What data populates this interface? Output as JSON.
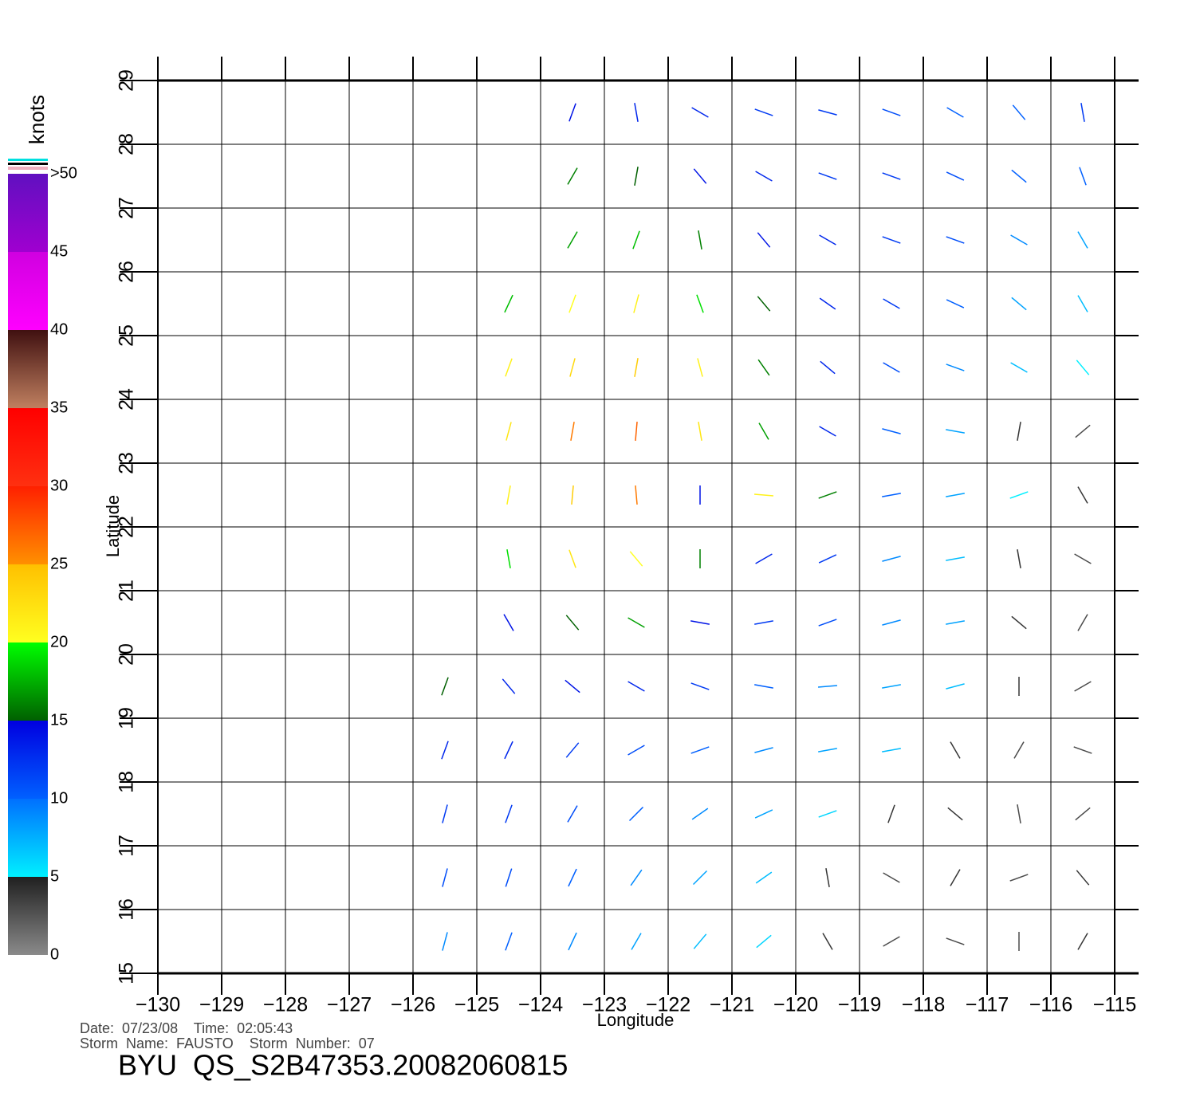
{
  "chart_data": {
    "type": "wind-vector",
    "x_label": "Longitude",
    "y_label": "Latitude",
    "xlim": [
      -130,
      -115
    ],
    "ylim": [
      15,
      29
    ],
    "xticks": [
      {
        "value": -130,
        "label": "−130"
      },
      {
        "value": -129,
        "label": "−129"
      },
      {
        "value": -128,
        "label": "−128"
      },
      {
        "value": -127,
        "label": "−127"
      },
      {
        "value": -126,
        "label": "−126"
      },
      {
        "value": -125,
        "label": "−125"
      },
      {
        "value": -124,
        "label": "−124"
      },
      {
        "value": -123,
        "label": "−123"
      },
      {
        "value": -122,
        "label": "−122"
      },
      {
        "value": -121,
        "label": "−121"
      },
      {
        "value": -120,
        "label": "−120"
      },
      {
        "value": -119,
        "label": "−119"
      },
      {
        "value": -118,
        "label": "−118"
      },
      {
        "value": -117,
        "label": "−117"
      },
      {
        "value": -116,
        "label": "−116"
      },
      {
        "value": -115,
        "label": "−115"
      }
    ],
    "yticks": [
      15,
      16,
      17,
      18,
      19,
      20,
      21,
      22,
      23,
      24,
      25,
      26,
      27,
      28,
      29
    ],
    "grid": true,
    "colorbar": {
      "label": "knots",
      "lim": [
        0,
        50
      ],
      "ticks": [
        0,
        5,
        10,
        15,
        20,
        25,
        30,
        35,
        40,
        45,
        {
          "value": 50,
          "label": ">50"
        }
      ],
      "bands": [
        [
          "#8a8a8a",
          "#202020"
        ],
        [
          "#00f0ff",
          "#0070ff"
        ],
        [
          "#0060ff",
          "#0000e0"
        ],
        [
          "#006000",
          "#00ff00"
        ],
        [
          "#ffff20",
          "#ffc000"
        ],
        [
          "#ff9000",
          "#ff2000"
        ],
        [
          "#ff3010",
          "#ff0000"
        ],
        [
          "#c08060",
          "#401010"
        ],
        [
          "#ff00ff",
          "#d000e0"
        ],
        [
          "#a000d0",
          "#6010c0"
        ]
      ]
    },
    "rows": [
      {
        "lat": 15.5,
        "lon": [
          -125.5,
          -124.5,
          -123.5,
          -122.5,
          -121.5,
          -120.5,
          -119.5,
          -118.5,
          -117.5,
          -116.5,
          -115.5
        ],
        "speed": [
          9,
          10,
          9,
          8,
          7,
          6,
          4,
          3,
          3,
          3,
          4
        ],
        "angle": [
          75,
          70,
          65,
          60,
          50,
          40,
          120,
          30,
          160,
          90,
          60
        ]
      },
      {
        "lat": 16.5,
        "lon": [
          -125.5,
          -124.5,
          -123.5,
          -122.5,
          -121.5,
          -120.5,
          -119.5,
          -118.5,
          -117.5,
          -116.5,
          -115.5
        ],
        "speed": [
          11,
          11,
          10,
          9,
          8,
          7,
          4,
          3,
          4,
          3,
          4
        ],
        "angle": [
          75,
          72,
          65,
          55,
          45,
          35,
          100,
          150,
          60,
          20,
          130
        ]
      },
      {
        "lat": 17.5,
        "lon": [
          -125.5,
          -124.5,
          -123.5,
          -122.5,
          -121.5,
          -120.5,
          -119.5,
          -118.5,
          -117.5,
          -116.5,
          -115.5
        ],
        "speed": [
          12,
          12,
          11,
          10,
          9,
          8,
          6,
          4,
          4,
          3,
          3
        ],
        "angle": [
          75,
          70,
          60,
          45,
          35,
          25,
          20,
          70,
          140,
          100,
          40
        ]
      },
      {
        "lat": 18.5,
        "lon": [
          -125.5,
          -124.5,
          -123.5,
          -122.5,
          -121.5,
          -120.5,
          -119.5,
          -118.5,
          -117.5,
          -116.5,
          -115.5
        ],
        "speed": [
          13,
          13,
          12,
          11,
          10,
          9,
          8,
          7,
          4,
          3,
          3
        ],
        "angle": [
          70,
          65,
          50,
          30,
          20,
          15,
          10,
          10,
          120,
          60,
          160
        ]
      },
      {
        "lat": 19.5,
        "lon": [
          -125.5,
          -124.5,
          -123.5,
          -122.5,
          -121.5,
          -120.5,
          -119.5,
          -118.5,
          -117.5,
          -116.5,
          -115.5
        ],
        "speed": [
          15,
          13,
          14,
          13,
          12,
          10,
          9,
          8,
          7,
          4,
          3
        ],
        "angle": [
          70,
          130,
          140,
          150,
          160,
          170,
          5,
          10,
          15,
          90,
          30
        ]
      },
      {
        "lat": 20.5,
        "lon": [
          -124.5,
          -123.5,
          -122.5,
          -121.5,
          -120.5,
          -119.5,
          -118.5,
          -117.5,
          -116.5,
          -115.5
        ],
        "speed": [
          14,
          15,
          17,
          14,
          12,
          11,
          9,
          8,
          4,
          3
        ],
        "angle": [
          120,
          130,
          150,
          170,
          10,
          20,
          15,
          10,
          140,
          60
        ]
      },
      {
        "lat": 21.5,
        "lon": [
          -124.5,
          -123.5,
          -122.5,
          -121.5,
          -120.5,
          -119.5,
          -118.5,
          -117.5,
          -116.5,
          -115.5
        ],
        "speed": [
          19,
          22,
          20,
          16,
          13,
          12,
          9,
          7,
          4,
          3
        ],
        "angle": [
          100,
          110,
          130,
          90,
          30,
          25,
          15,
          10,
          100,
          150
        ]
      },
      {
        "lat": 22.5,
        "lon": [
          -124.5,
          -123.5,
          -122.5,
          -121.5,
          -120.5,
          -119.5,
          -118.5,
          -117.5,
          -116.5,
          -115.5
        ],
        "speed": [
          21,
          24,
          26,
          14,
          21,
          16,
          10,
          8,
          5,
          4
        ],
        "angle": [
          80,
          85,
          95,
          90,
          175,
          20,
          10,
          10,
          20,
          120
        ]
      },
      {
        "lat": 23.5,
        "lon": [
          -124.5,
          -123.5,
          -122.5,
          -121.5,
          -120.5,
          -119.5,
          -118.5,
          -117.5,
          -116.5,
          -115.5
        ],
        "speed": [
          22,
          26,
          27,
          22,
          17,
          13,
          10,
          8,
          4,
          3
        ],
        "angle": [
          75,
          80,
          85,
          100,
          120,
          150,
          165,
          170,
          80,
          40
        ]
      },
      {
        "lat": 24.5,
        "lon": [
          -124.5,
          -123.5,
          -122.5,
          -121.5,
          -120.5,
          -119.5,
          -118.5,
          -117.5,
          -116.5,
          -115.5
        ],
        "speed": [
          21,
          23,
          24,
          21,
          16,
          13,
          11,
          9,
          7,
          5
        ],
        "angle": [
          70,
          75,
          80,
          105,
          125,
          140,
          150,
          160,
          150,
          130
        ]
      },
      {
        "lat": 25.5,
        "lon": [
          -124.5,
          -123.5,
          -122.5,
          -121.5,
          -120.5,
          -119.5,
          -118.5,
          -117.5,
          -116.5,
          -115.5
        ],
        "speed": [
          18,
          20,
          21,
          19,
          15,
          13,
          12,
          10,
          8,
          7
        ],
        "angle": [
          65,
          70,
          75,
          110,
          130,
          145,
          150,
          155,
          140,
          120
        ]
      },
      {
        "lat": 26.5,
        "lon": [
          -123.5,
          -122.5,
          -121.5,
          -120.5,
          -119.5,
          -118.5,
          -117.5,
          -116.5,
          -115.5
        ],
        "speed": [
          17,
          18,
          16,
          14,
          13,
          12,
          11,
          9,
          8
        ],
        "angle": [
          60,
          70,
          100,
          130,
          150,
          160,
          160,
          150,
          120
        ]
      },
      {
        "lat": 27.5,
        "lon": [
          -123.5,
          -122.5,
          -121.5,
          -120.5,
          -119.5,
          -118.5,
          -117.5,
          -116.5,
          -115.5
        ],
        "speed": [
          16,
          15,
          14,
          13,
          12,
          12,
          11,
          10,
          10
        ],
        "angle": [
          60,
          80,
          130,
          150,
          160,
          160,
          155,
          140,
          110
        ]
      },
      {
        "lat": 28.5,
        "lon": [
          -123.5,
          -122.5,
          -121.5,
          -120.5,
          -119.5,
          -118.5,
          -117.5,
          -116.5,
          -115.5
        ],
        "speed": [
          14,
          13,
          13,
          12,
          12,
          11,
          10,
          10,
          12
        ],
        "angle": [
          70,
          100,
          150,
          160,
          165,
          160,
          150,
          130,
          100
        ]
      }
    ],
    "annotations": [
      "Date:  07/23/08    Time:  02:05:43",
      "Storm  Name:  FAUSTO    Storm  Number:  07",
      "BYU  QS_S2B47353.20082060815"
    ]
  }
}
